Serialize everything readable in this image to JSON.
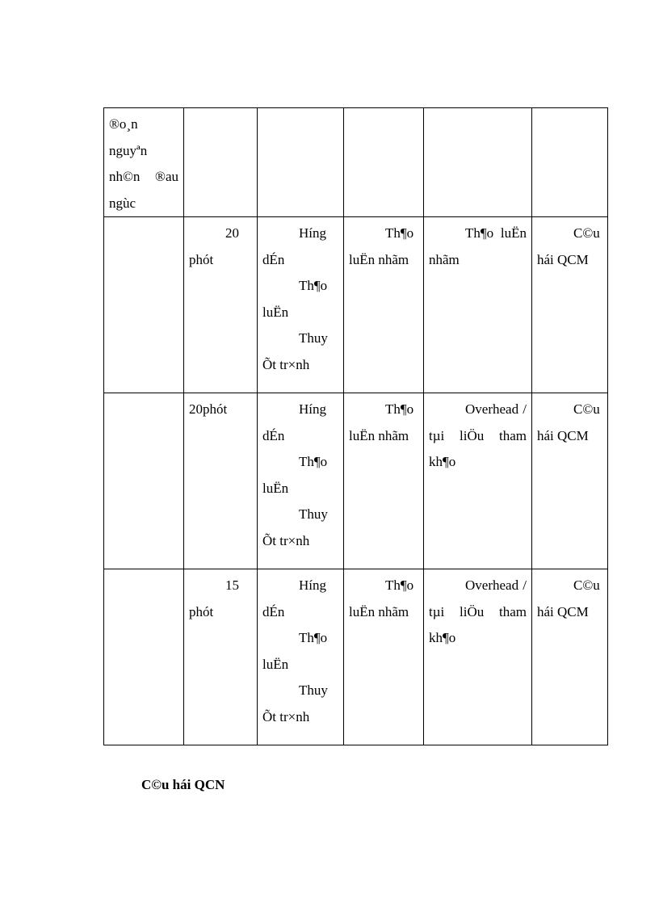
{
  "table": {
    "rows": [
      {
        "cells": [
          {
            "paragraphs": [
              "®o¸n nguyªn nh©n ®au ngùc"
            ],
            "continuation": true
          },
          {
            "paragraphs": []
          },
          {
            "paragraphs": []
          },
          {
            "paragraphs": []
          },
          {
            "paragraphs": []
          },
          {
            "paragraphs": []
          }
        ]
      },
      {
        "cells": [
          {
            "paragraphs": []
          },
          {
            "paragraphs": [
              "20 phót"
            ]
          },
          {
            "paragraphs": [
              "H­íng dÉn",
              "Th¶o luËn",
              "Thuy Õt tr×nh"
            ]
          },
          {
            "paragraphs": [
              "Th¶o luËn nhãm"
            ]
          },
          {
            "paragraphs": [
              "Th¶o luËn nhãm"
            ]
          },
          {
            "paragraphs": [
              "C©u hái QCM"
            ]
          }
        ]
      },
      {
        "cells": [
          {
            "paragraphs": []
          },
          {
            "paragraphs": [
              "20phót"
            ],
            "continuation": true
          },
          {
            "paragraphs": [
              "H­íng dÉn",
              "Th¶o luËn",
              "Thuy Õt tr×nh"
            ]
          },
          {
            "paragraphs": [
              "Th¶o luËn nhãm"
            ]
          },
          {
            "paragraphs": [
              "Overhead / tµi liÖu tham kh¶o"
            ]
          },
          {
            "paragraphs": [
              "C©u hái QCM"
            ]
          }
        ]
      },
      {
        "cells": [
          {
            "paragraphs": []
          },
          {
            "paragraphs": [
              "15 phót"
            ]
          },
          {
            "paragraphs": [
              "H­íng dÉn",
              "Th¶o luËn",
              "Thuy Õt tr×nh"
            ]
          },
          {
            "paragraphs": [
              "Th¶o luËn nhãm"
            ]
          },
          {
            "paragraphs": [
              "Overhead / tµi liÖu tham kh¶o"
            ]
          },
          {
            "paragraphs": [
              "C©u hái QCM"
            ]
          }
        ]
      }
    ]
  },
  "heading": "C©u hái QCN"
}
